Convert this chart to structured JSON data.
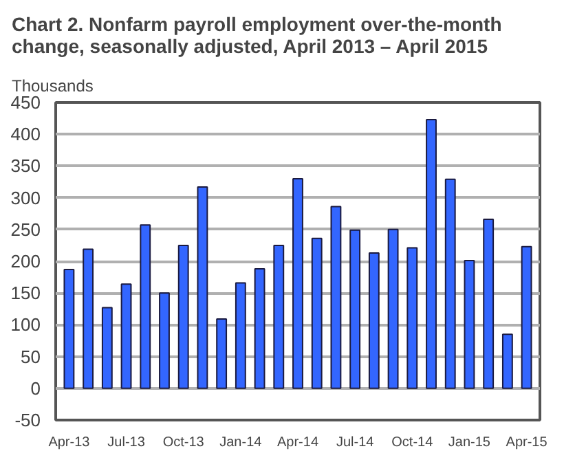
{
  "chart_data": {
    "type": "bar",
    "title": "Chart 2. Nonfarm payroll employment over-the-month change, seasonally adjusted, April 2013 – April 2015",
    "ylabel": "Thousands",
    "categories": [
      "Apr-13",
      null,
      null,
      "Jul-13",
      null,
      null,
      "Oct-13",
      null,
      null,
      "Jan-14",
      null,
      null,
      "Apr-14",
      null,
      null,
      "Jul-14",
      null,
      null,
      "Oct-14",
      null,
      null,
      "Jan-15",
      null,
      null,
      "Apr-15"
    ],
    "values": [
      187,
      219,
      127,
      164,
      257,
      150,
      225,
      317,
      109,
      166,
      188,
      225,
      330,
      236,
      286,
      249,
      213,
      250,
      221,
      423,
      329,
      201,
      266,
      85,
      223
    ],
    "color": "#3366ff",
    "ylim": [
      -50,
      450
    ],
    "yticks": [
      -50,
      0,
      50,
      100,
      150,
      200,
      250,
      300,
      350,
      400,
      450
    ],
    "grid": "y"
  }
}
